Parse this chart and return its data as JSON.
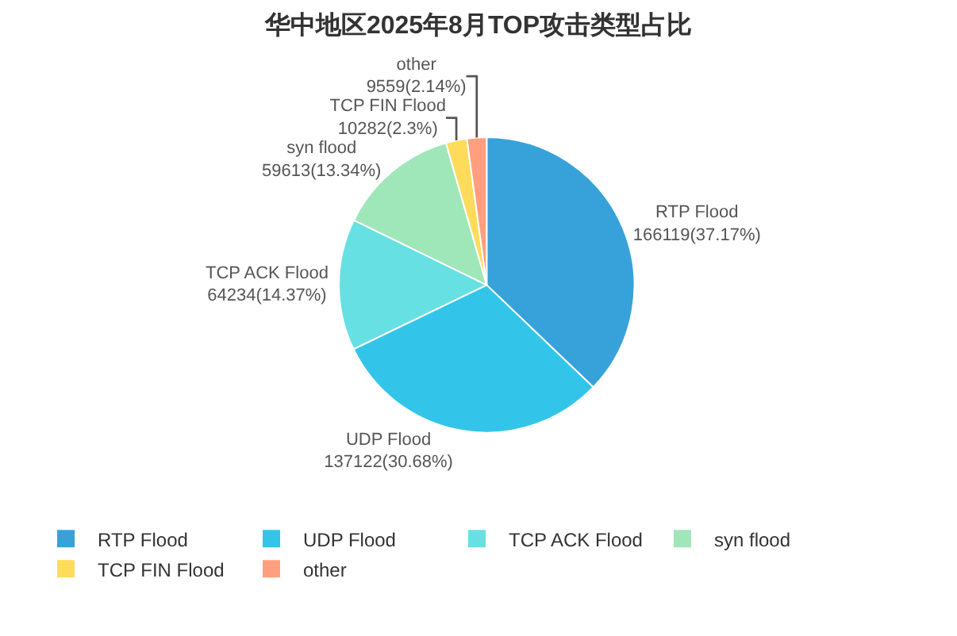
{
  "chart_data": {
    "type": "pie",
    "title": "华中地区2025年8月TOP攻击类型占比",
    "categories": [
      "RTP Flood",
      "UDP Flood",
      "TCP ACK Flood",
      "syn flood",
      "TCP FIN Flood",
      "other"
    ],
    "values": [
      166119,
      137122,
      64234,
      59613,
      10282,
      9559
    ],
    "value_labels": [
      "166119(37.17%)",
      "137122(30.68%)",
      "64234(14.37%)",
      "59613(13.34%)",
      "10282(2.3%)",
      "9559(2.14%)"
    ],
    "colors": [
      "#37a2da",
      "#32c5e9",
      "#67e0e3",
      "#9fe6b8",
      "#ffdb5c",
      "#ff9f7f"
    ],
    "legend": "bottom"
  }
}
